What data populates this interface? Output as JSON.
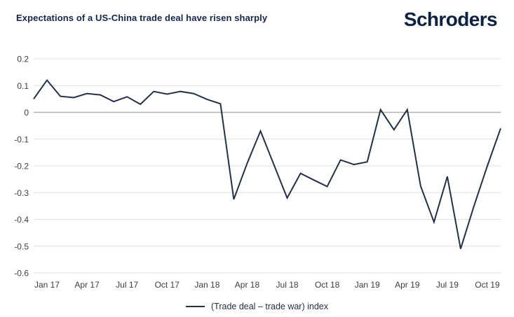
{
  "header": {
    "title": "Expectations of a US-China trade deal have risen sharply"
  },
  "logo": {
    "pre": "Schr",
    "o": "o",
    "post": "ders"
  },
  "legend": {
    "label": "(Trade deal – trade war) index"
  },
  "chart_data": {
    "type": "line",
    "title": "Expectations of a US-China trade deal have risen sharply",
    "series_name": "(Trade deal – trade war) index",
    "months": [
      "Dec 16",
      "Jan 17",
      "Feb 17",
      "Mar 17",
      "Apr 17",
      "May 17",
      "Jun 17",
      "Jul 17",
      "Aug 17",
      "Sep 17",
      "Oct 17",
      "Nov 17",
      "Dec 17",
      "Jan 18",
      "Feb 18",
      "Mar 18",
      "Apr 18",
      "May 18",
      "Jun 18",
      "Jul 18",
      "Aug 18",
      "Sep 18",
      "Oct 18",
      "Nov 18",
      "Dec 18",
      "Jan 19",
      "Feb 19",
      "Mar 19",
      "Apr 19",
      "May 19",
      "Jun 19",
      "Jul 19",
      "Aug 19",
      "Sep 19",
      "Oct 19",
      "Nov 19"
    ],
    "values": [
      0.05,
      0.12,
      0.06,
      0.055,
      0.07,
      0.065,
      0.04,
      0.058,
      0.03,
      0.078,
      0.068,
      0.078,
      0.07,
      0.048,
      0.032,
      -0.325,
      -0.19,
      -0.07,
      -0.195,
      -0.32,
      -0.228,
      -0.253,
      -0.277,
      -0.178,
      -0.195,
      -0.185,
      0.01,
      -0.065,
      0.01,
      -0.275,
      -0.41,
      -0.24,
      -0.51,
      -0.35,
      -0.2,
      -0.06
    ],
    "x_tick_labels": [
      "Jan 17",
      "Apr 17",
      "Jul 17",
      "Oct 17",
      "Jan 18",
      "Apr 18",
      "Jul 18",
      "Oct 18",
      "Jan 19",
      "Apr 19",
      "Jul 19",
      "Oct 19"
    ],
    "x_tick_indices": [
      1,
      4,
      7,
      10,
      13,
      16,
      19,
      22,
      25,
      28,
      31,
      34
    ],
    "y_tick_labels": [
      "0.2",
      "0.1",
      "0",
      "-0.1",
      "-0.2",
      "-0.3",
      "-0.4",
      "-0.5",
      "-0.6"
    ],
    "y_ticks": [
      0.2,
      0.1,
      0,
      -0.1,
      -0.2,
      -0.3,
      -0.4,
      -0.5,
      -0.6
    ],
    "ylim": [
      -0.6,
      0.2
    ],
    "grid": "horizontal",
    "legend_position": "bottom-center",
    "colors": {
      "line": "#243049",
      "grid": "#dedee2",
      "zero_line": "#b0b0b4",
      "axis_text": "#3d3d3d",
      "title_text": "#16254d",
      "logo_text": "#0d2142"
    }
  }
}
